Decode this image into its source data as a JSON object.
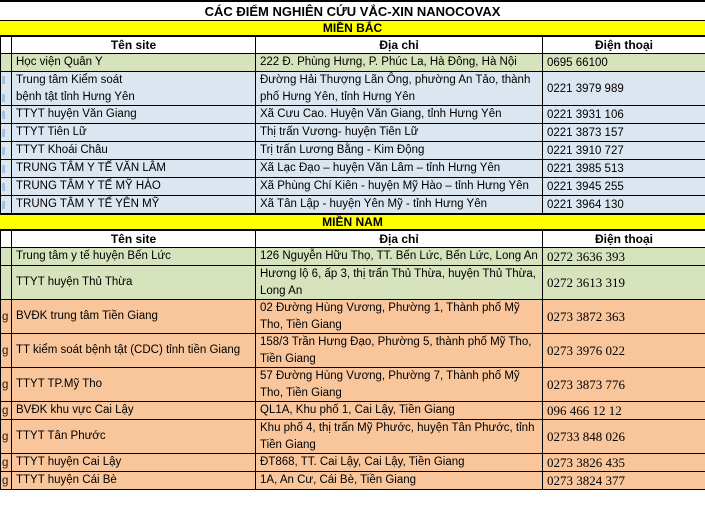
{
  "title": "CÁC ĐIỂM NGHIÊN CỨU VẮC-XIN NANOCOVAX",
  "columns": {
    "site": "Tên site",
    "address": "Địa chỉ",
    "phone": "Điện thoại"
  },
  "colors": {
    "yellow": "#ffff00",
    "green": "#d6e3bc",
    "blue": "#dce6f1",
    "orange": "#f9c59b",
    "mark_blue": "#9dc3e6"
  },
  "sections": [
    {
      "header": "MIỀN BẮC",
      "rows": [
        {
          "tone": "green",
          "left": "",
          "site": "Học viện Quân Y",
          "address": "222 Đ. Phùng Hưng, P. Phúc La, Hà Đông, Hà Nội",
          "phone": "0695 66100"
        },
        {
          "tone": "blue",
          "left": "mark-double",
          "site": "Trung tâm Kiểm soát\nbệnh tật tỉnh Hưng Yên",
          "address": "Đường Hải Thượng Lãn Ông, phường An Tảo, thành phố Hưng Yên, tỉnh Hưng Yên",
          "phone": "0221 3979 989"
        },
        {
          "tone": "blue",
          "left": "mark",
          "site": "TTYT huyện Văn Giang",
          "address": "Xã Cưu Cao. Huyện Văn Giang, tỉnh Hưng Yên",
          "phone": "0221 3931 106"
        },
        {
          "tone": "blue",
          "left": "mark",
          "site": "TTYT Tiên Lữ",
          "address": "Thị trấn Vương- huyện Tiên Lữ",
          "phone": "0221 3873 157"
        },
        {
          "tone": "blue",
          "left": "mark",
          "site": "TTYT Khoái Châu",
          "address": "Trị trấn Lương Bằng - Kim Động",
          "phone": "0221 3910 727"
        },
        {
          "tone": "blue",
          "left": "mark",
          "site": "TRUNG TÂM Y TẾ VĂN LÂM",
          "address": "Xã Lạc Đạo – huyện Văn Lâm – tỉnh Hưng Yên",
          "phone": "0221 3985 513"
        },
        {
          "tone": "blue",
          "left": "mark",
          "site": "TRUNG TÂM Y TẾ MỸ HÀO",
          "address": "Xã Phùng Chí Kiên - huyện Mỹ Hào – tỉnh Hưng Yên",
          "phone": "0221 3945 255"
        },
        {
          "tone": "blue",
          "left": "mark",
          "site": "TRUNG TÂM Y TẾ YÊN MỸ",
          "address": "Xã Tân Lập - huyện Yên Mỹ - tỉnh Hưng Yên",
          "phone": "0221 3964 130"
        }
      ]
    },
    {
      "header": "MIỀN NAM",
      "rows": [
        {
          "tone": "green",
          "left": "",
          "site": "Trung tâm y tế huyện Bến Lức",
          "address": "126 Nguyễn Hữu Thọ, TT. Bến Lức, Bến Lức, Long An",
          "phone": "0272 3636 393"
        },
        {
          "tone": "green",
          "left": "",
          "site": "TTYT huyện Thủ Thừa",
          "address": "Hương lộ 6, ấp 3, thị trấn Thủ Thừa, huyện Thủ Thừa, Long An",
          "phone": "0272 3613 319"
        },
        {
          "tone": "orange",
          "left": "g",
          "site": "BVĐK trung tâm Tiền Giang",
          "address": "02 Đường Hùng Vương, Phường 1, Thành phố Mỹ Tho, Tiền Giang",
          "phone": "0273 3872 363"
        },
        {
          "tone": "orange",
          "left": "g",
          "site": "TT kiểm soát bệnh tật (CDC) tỉnh tiền Giang",
          "address": "158/3 Trần Hưng Đạo, Phường 5, thành phố Mỹ Tho, Tiền Giang",
          "phone": "0273 3976 022"
        },
        {
          "tone": "orange",
          "left": "g",
          "site": "TTYT TP.Mỹ Tho",
          "address": "57 Đường Hùng Vương, Phường 7, Thành phố Mỹ Tho, Tiền Giang",
          "phone": "0273 3873 776"
        },
        {
          "tone": "orange",
          "left": "g",
          "site": "BVĐK khu vực Cai Lậy",
          "address": "QL1A, Khu phố 1, Cai Lậy, Tiền Giang",
          "phone": "096 466 12 12"
        },
        {
          "tone": "orange",
          "left": "g",
          "site": "TTYT Tân Phước",
          "address": "Khu phố 4, thị trấn Mỹ Phước, huyện Tân Phước, tỉnh Tiền Giang",
          "phone": "02733 848 026"
        },
        {
          "tone": "orange",
          "left": "g",
          "site": "TTYT huyện Cai Lậy",
          "address": "ĐT868, TT. Cai Lậy, Cai Lậy, Tiền Giang",
          "phone": "0273 3826 435"
        },
        {
          "tone": "orange",
          "left": "g",
          "site": "TTYT huyện Cái Bè",
          "address": "1A, An Cư, Cái Bè, Tiền Giang",
          "phone": "0273 3824 377"
        }
      ]
    }
  ]
}
